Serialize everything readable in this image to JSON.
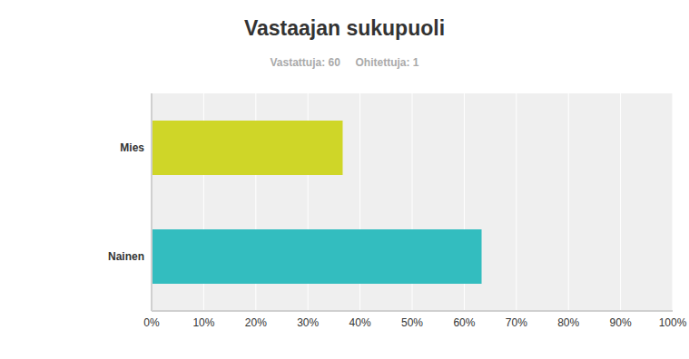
{
  "chart_data": {
    "type": "bar",
    "title": "Vastaajan sukupuoli",
    "subtitle": "Vastattuja: 60     Ohitettuja: 1",
    "orientation": "horizontal",
    "categories": [
      "Mies",
      "Nainen"
    ],
    "values": [
      36.67,
      63.33
    ],
    "colors": [
      "#cfd628",
      "#33bdbf"
    ],
    "xlim": [
      0,
      100
    ],
    "xticks": [
      {
        "value": 0,
        "label": "0%"
      },
      {
        "value": 10,
        "label": "10%"
      },
      {
        "value": 20,
        "label": "20%"
      },
      {
        "value": 30,
        "label": "30%"
      },
      {
        "value": 40,
        "label": "40%"
      },
      {
        "value": 50,
        "label": "50%"
      },
      {
        "value": 60,
        "label": "60%"
      },
      {
        "value": 70,
        "label": "70%"
      },
      {
        "value": 80,
        "label": "80%"
      },
      {
        "value": 90,
        "label": "90%"
      },
      {
        "value": 100,
        "label": "100%"
      }
    ],
    "grid": true
  }
}
